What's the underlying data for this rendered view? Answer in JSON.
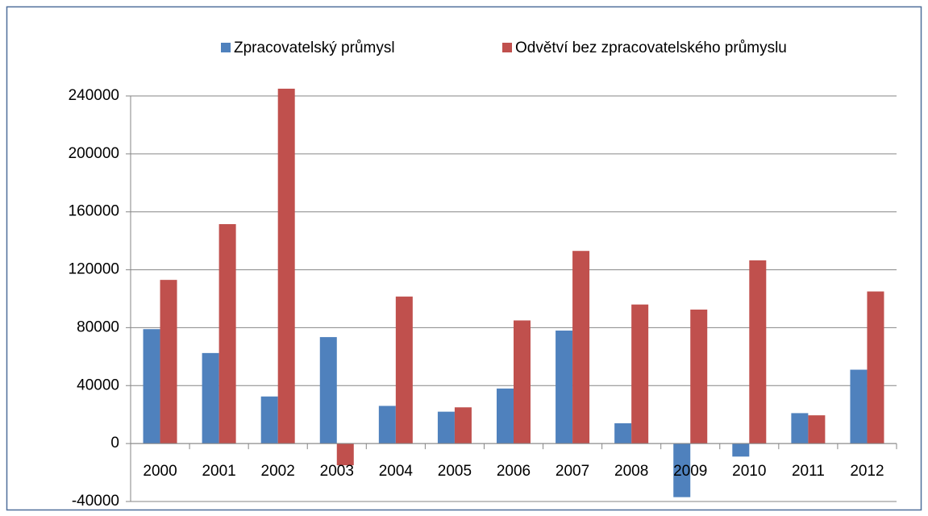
{
  "chart_data": {
    "type": "bar",
    "categories": [
      "2000",
      "2001",
      "2002",
      "2003",
      "2004",
      "2005",
      "2006",
      "2007",
      "2008",
      "2009",
      "2010",
      "2011",
      "2012"
    ],
    "series": [
      {
        "name": "Zpracovatelský průmysl",
        "color": "#4f81bd",
        "values": [
          79000,
          62500,
          32500,
          73500,
          26000,
          22000,
          38000,
          78000,
          14000,
          -37000,
          -9000,
          21000,
          51000
        ]
      },
      {
        "name": "Odvětví bez zpracovatelského průmyslu",
        "color": "#c0504d",
        "values": [
          113000,
          151500,
          245000,
          -15000,
          101500,
          25000,
          85000,
          133000,
          96000,
          92500,
          126500,
          19500,
          105000
        ]
      }
    ],
    "ylim": [
      -40000,
      240000
    ],
    "yticks": [
      -40000,
      0,
      40000,
      80000,
      120000,
      160000,
      200000,
      240000
    ],
    "grid": true,
    "legend": "top"
  }
}
